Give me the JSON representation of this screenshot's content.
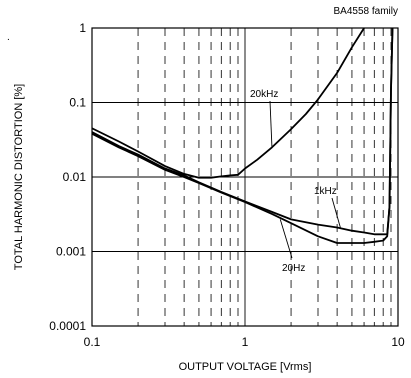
{
  "chart_data": {
    "type": "line",
    "title": "BA4558  family",
    "corner_mark": ".",
    "xlabel": "OUTPUT VOLTAGE [Vrms]",
    "ylabel": "TOTAL HARMONIC DISTORTION [%]",
    "xscale": "log",
    "yscale": "log",
    "xlim": [
      0.1,
      10
    ],
    "ylim": [
      0.0001,
      1
    ],
    "x_ticks": [
      "0.1",
      "1",
      "10"
    ],
    "y_ticks": [
      "0.0001",
      "0.001",
      "0.01",
      "0.1",
      "1"
    ],
    "grid": true,
    "series": [
      {
        "name": "20kHz",
        "x": [
          0.1,
          0.15,
          0.2,
          0.3,
          0.4,
          0.5,
          0.6,
          0.7,
          0.8,
          0.9,
          1.0,
          1.2,
          1.5,
          2.0,
          2.5,
          3.0,
          4.0,
          5.0,
          6.0
        ],
        "y": [
          0.045,
          0.03,
          0.022,
          0.014,
          0.011,
          0.0098,
          0.0098,
          0.0102,
          0.0105,
          0.0107,
          0.013,
          0.017,
          0.025,
          0.044,
          0.07,
          0.11,
          0.25,
          0.55,
          1.0
        ]
      },
      {
        "name": "1kHz",
        "x": [
          0.1,
          0.15,
          0.2,
          0.3,
          0.4,
          0.5,
          0.7,
          1.0,
          1.5,
          2.0,
          3.0,
          4.0,
          5.0,
          6.0,
          7.0,
          8.0,
          8.5,
          8.8,
          9.0,
          9.2
        ],
        "y": [
          0.04,
          0.026,
          0.02,
          0.013,
          0.0105,
          0.0085,
          0.0063,
          0.0047,
          0.0034,
          0.0027,
          0.0023,
          0.0021,
          0.0019,
          0.0018,
          0.0017,
          0.0017,
          0.0017,
          0.004,
          0.15,
          1.0
        ]
      },
      {
        "name": "20Hz",
        "x": [
          0.1,
          0.15,
          0.2,
          0.3,
          0.4,
          0.5,
          0.7,
          1.0,
          1.5,
          2.0,
          3.0,
          4.0,
          5.0,
          6.0,
          7.0,
          8.0,
          8.5,
          8.8,
          9.0,
          9.2
        ],
        "y": [
          0.038,
          0.025,
          0.019,
          0.0125,
          0.01,
          0.0083,
          0.0062,
          0.0046,
          0.0032,
          0.0024,
          0.0016,
          0.0013,
          0.0013,
          0.0013,
          0.00135,
          0.0014,
          0.0016,
          0.004,
          0.15,
          1.0
        ]
      }
    ],
    "annotations": [
      {
        "text": "20kHz",
        "series": "20kHz",
        "x": 1.5,
        "y": 0.025
      },
      {
        "text": "1kHz",
        "series": "1kHz",
        "x": 4.2,
        "y": 0.0021
      },
      {
        "text": "20Hz",
        "series": "20Hz",
        "x": 1.7,
        "y": 0.0027
      }
    ]
  }
}
